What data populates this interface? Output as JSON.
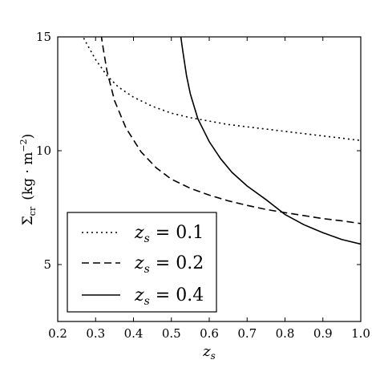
{
  "chart_data": {
    "type": "line",
    "xlabel": "z_s",
    "ylabel": "Σ_cr (kg · m⁻²)",
    "xlim": [
      0.2,
      1.0
    ],
    "ylim": [
      2.5,
      15
    ],
    "xticks": [
      "0.2",
      "0.3",
      "0.4",
      "0.5",
      "0.6",
      "0.7",
      "0.8",
      "0.9",
      "1.0"
    ],
    "yticks": [
      "5",
      "10",
      "15"
    ],
    "legend_position": "lower-left",
    "series": [
      {
        "name": "z_s = 0.1",
        "style": "dotted",
        "x": [
          0.25,
          0.27,
          0.3,
          0.33,
          0.36,
          0.4,
          0.45,
          0.5,
          0.55,
          0.6,
          0.65,
          0.7,
          0.75,
          0.8,
          0.85,
          0.9,
          0.95,
          1.0
        ],
        "y": [
          15.5,
          14.9,
          14.0,
          13.3,
          12.8,
          12.35,
          11.95,
          11.65,
          11.45,
          11.3,
          11.15,
          11.05,
          10.95,
          10.85,
          10.75,
          10.65,
          10.55,
          10.45
        ]
      },
      {
        "name": "z_s = 0.2",
        "style": "dashed",
        "x": [
          0.31,
          0.32,
          0.33,
          0.35,
          0.38,
          0.42,
          0.46,
          0.5,
          0.55,
          0.6,
          0.65,
          0.7,
          0.75,
          0.8,
          0.85,
          0.9,
          0.95,
          1.0
        ],
        "y": [
          15.6,
          14.5,
          13.5,
          12.2,
          11.0,
          9.95,
          9.25,
          8.75,
          8.35,
          8.05,
          7.8,
          7.6,
          7.42,
          7.28,
          7.15,
          7.02,
          6.92,
          6.8
        ]
      },
      {
        "name": "z_s = 0.4",
        "style": "solid",
        "x": [
          0.52,
          0.53,
          0.54,
          0.55,
          0.57,
          0.6,
          0.63,
          0.66,
          0.7,
          0.75,
          0.8,
          0.85,
          0.9,
          0.95,
          1.0
        ],
        "y": [
          15.6,
          14.4,
          13.3,
          12.5,
          11.4,
          10.4,
          9.65,
          9.05,
          8.45,
          7.85,
          7.2,
          6.75,
          6.4,
          6.1,
          5.9
        ]
      }
    ],
    "legend": [
      {
        "symbol": "z",
        "subscript": "s",
        "rest": " = 0.1",
        "style": "dotted"
      },
      {
        "symbol": "z",
        "subscript": "s",
        "rest": " = 0.2",
        "style": "dashed"
      },
      {
        "symbol": "z",
        "subscript": "s",
        "rest": " = 0.4",
        "style": "solid"
      }
    ]
  },
  "axes_text": {
    "x_symbol": "z",
    "x_sub": "s",
    "y_symbol": "Σ",
    "y_sub": "cr",
    "y_units_open": "(kg · m",
    "y_units_exp": "−2",
    "y_units_close": ")"
  }
}
